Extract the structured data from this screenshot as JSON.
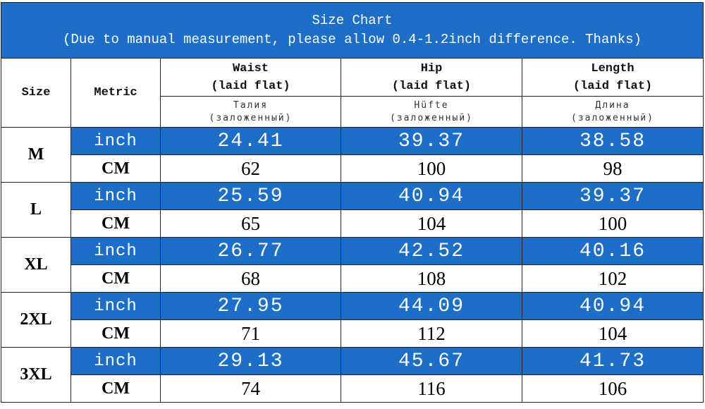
{
  "header": {
    "title": "Size Chart",
    "subtitle": "(Due to manual measurement, please allow 0.4-1.2inch difference. Thanks)"
  },
  "table": {
    "columns": [
      {
        "label": "Size"
      },
      {
        "label": "Metric"
      },
      {
        "label": "Waist",
        "note": "(laid flat)",
        "translation": "Талия",
        "translation_note": "(заложенный)"
      },
      {
        "label": "Hip",
        "note": "(laid flat)",
        "translation": "Hüfte",
        "translation_note": "(заложенный)"
      },
      {
        "label": "Length",
        "note": "(laid flat)",
        "translation": "Длина",
        "translation_note": "(заложенный)"
      }
    ],
    "rows": [
      {
        "size": "M",
        "units": [
          "inch",
          "CM"
        ],
        "inch": [
          24.41,
          39.37,
          38.58
        ],
        "cm": [
          62,
          100,
          98
        ]
      },
      {
        "size": "L",
        "units": [
          "inch",
          "CM"
        ],
        "inch": [
          25.59,
          40.94,
          39.37
        ],
        "cm": [
          65,
          104,
          100
        ]
      },
      {
        "size": "XL",
        "units": [
          "inch",
          "CM"
        ],
        "inch": [
          26.77,
          42.52,
          40.16
        ],
        "cm": [
          68,
          108,
          102
        ]
      },
      {
        "size": "2XL",
        "units": [
          "inch",
          "CM"
        ],
        "inch": [
          27.95,
          44.09,
          40.94
        ],
        "cm": [
          71,
          112,
          104
        ]
      },
      {
        "size": "3XL",
        "units": [
          "inch",
          "CM"
        ],
        "inch": [
          29.13,
          45.67,
          41.73
        ],
        "cm": [
          74,
          116,
          106
        ]
      }
    ]
  }
}
